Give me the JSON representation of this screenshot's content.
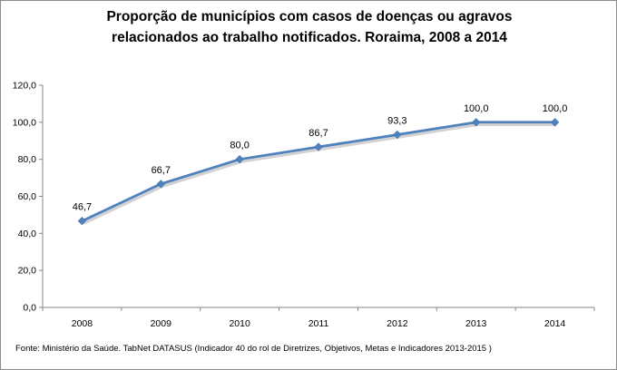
{
  "chart_data": {
    "type": "line",
    "title_lines": [
      "Proporção de municípios com casos de doenças ou agravos",
      "relacionados ao trabalho notificados. Roraima, 2008 a 2014"
    ],
    "categories": [
      "2008",
      "2009",
      "2010",
      "2011",
      "2012",
      "2013",
      "2014"
    ],
    "values": [
      46.7,
      66.7,
      80.0,
      86.7,
      93.3,
      100.0,
      100.0
    ],
    "data_labels": [
      "46,7",
      "66,7",
      "80,0",
      "86,7",
      "93,3",
      "100,0",
      "100,0"
    ],
    "y_ticks": [
      "0,0",
      "20,0",
      "40,0",
      "60,0",
      "80,0",
      "100,0",
      "120,0"
    ],
    "ylim": [
      0,
      120
    ],
    "xlabel": "",
    "ylabel": "",
    "grid": false,
    "legend": "none",
    "series_color": "#4f81bd"
  },
  "footnote": "Fonte: Ministério da Saúde. TabNet DATASUS (Indicador 40 do rol de Diretrizes, Objetivos, Metas e Indicadores 2013-2015 )"
}
